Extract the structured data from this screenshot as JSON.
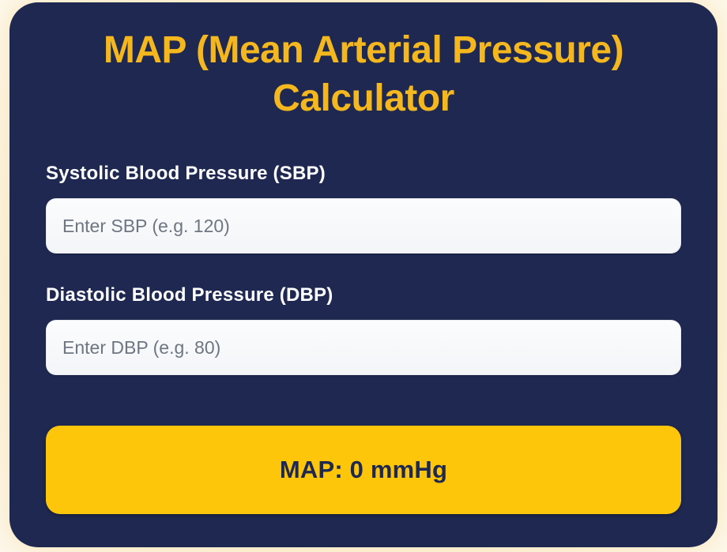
{
  "header": {
    "title": "MAP (Mean Arterial Pressure) Calculator"
  },
  "form": {
    "sbp": {
      "label": "Systolic Blood Pressure (SBP)",
      "placeholder": "Enter SBP (e.g. 120)",
      "value": ""
    },
    "dbp": {
      "label": "Diastolic Blood Pressure (DBP)",
      "placeholder": "Enter DBP (e.g. 80)",
      "value": ""
    }
  },
  "result_button": {
    "label": "MAP: 0 mmHg"
  },
  "colors": {
    "page_background": "#FAF1DA",
    "card_background": "#1F2850",
    "title_text": "#F4B71E",
    "label_text": "#FFFFFF",
    "input_background": "#F7F8FA",
    "placeholder_text": "#6E7681",
    "button_background": "#FEC60A",
    "button_text": "#1F2850"
  }
}
